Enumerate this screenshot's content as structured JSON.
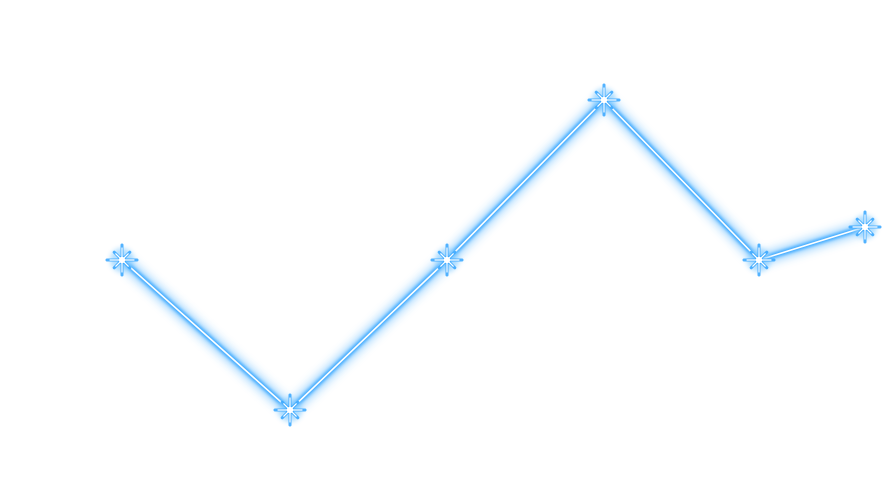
{
  "chart_data": {
    "type": "line",
    "title": "",
    "xlabel": "",
    "ylabel": "",
    "x": [
      1,
      2,
      3,
      4,
      5,
      6
    ],
    "series": [
      {
        "values": [
          260,
          410,
          260,
          100,
          260,
          227
        ]
      }
    ],
    "grid": false,
    "legend": "none",
    "axes_visible": false,
    "marker": "glowing-star",
    "colors": {
      "glow": "#36a6ff",
      "core": "#ffffff",
      "mid": "#8fd0ff",
      "background": "#ffffff"
    }
  }
}
